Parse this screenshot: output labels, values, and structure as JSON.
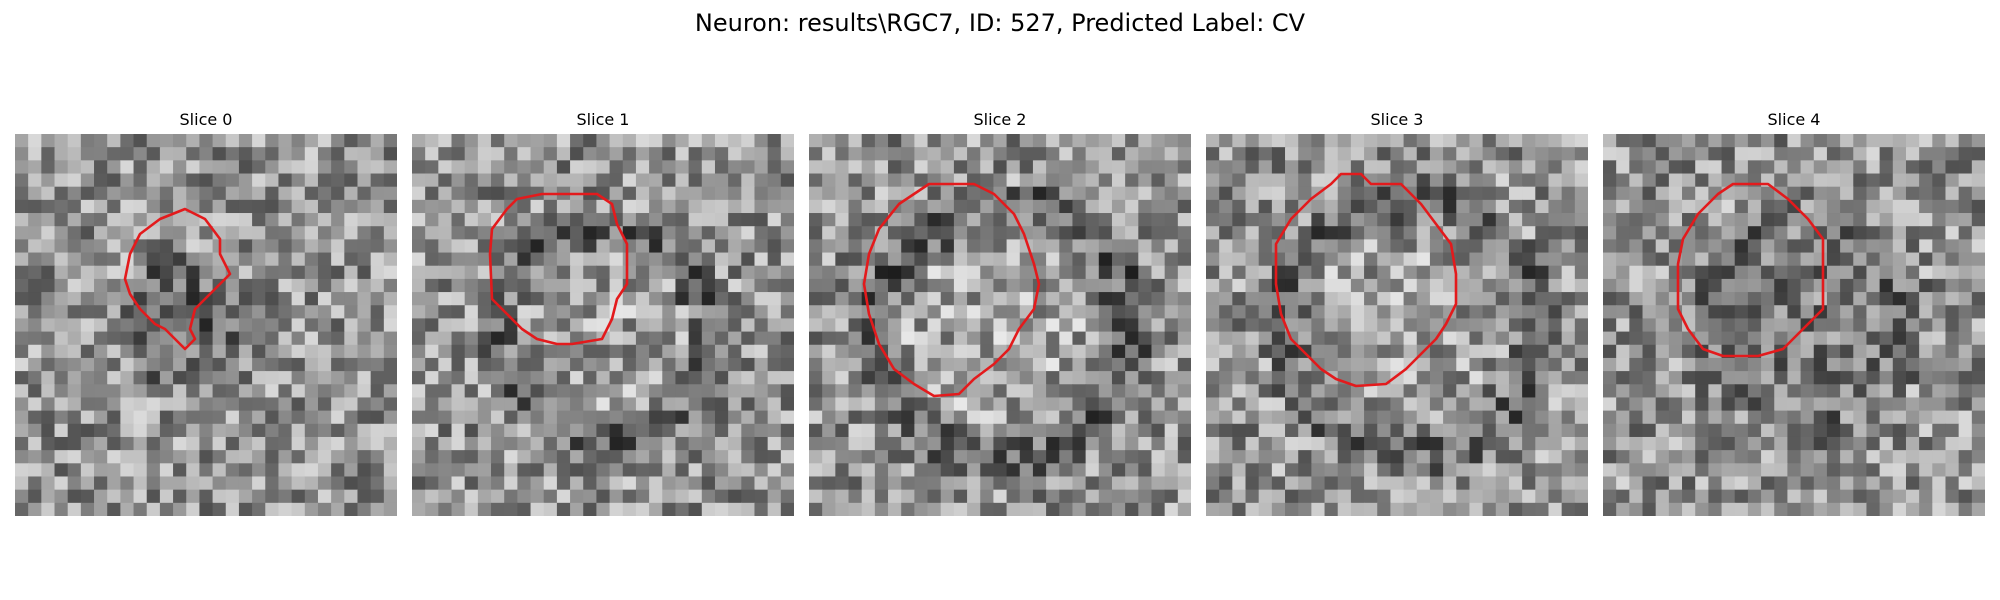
{
  "figure": {
    "title": "Neuron: results\\RGC7, ID: 527, Predicted Label: CV"
  },
  "panels": [
    {
      "title": "Slice 0",
      "contour_color": "#e31a1c"
    },
    {
      "title": "Slice 1",
      "contour_color": "#e31a1c"
    },
    {
      "title": "Slice 2",
      "contour_color": "#e31a1c"
    },
    {
      "title": "Slice 3",
      "contour_color": "#e31a1c"
    },
    {
      "title": "Slice 4",
      "contour_color": "#e31a1c"
    }
  ]
}
